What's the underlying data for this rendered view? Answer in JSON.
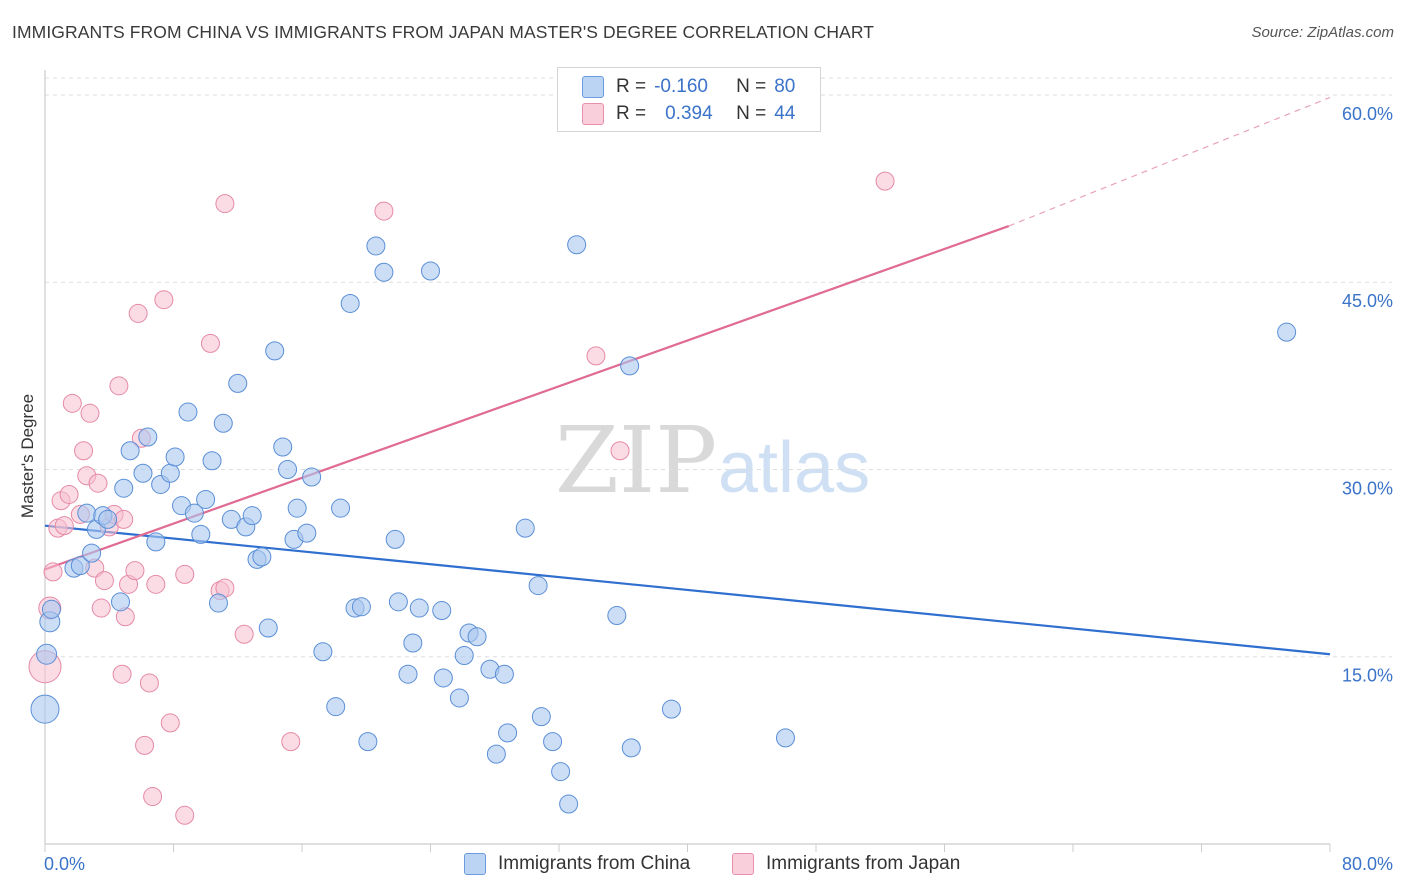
{
  "header": {
    "title": "IMMIGRANTS FROM CHINA VS IMMIGRANTS FROM JAPAN MASTER'S DEGREE CORRELATION CHART",
    "source": "Source: ZipAtlas.com"
  },
  "legend": {
    "rows": [
      {
        "r_label": "R =",
        "r_value": "-0.160",
        "n_label": "N =",
        "n_value": "80"
      },
      {
        "r_label": "R =",
        "r_value": "0.394",
        "n_label": "N =",
        "n_value": "44"
      }
    ]
  },
  "bottom_legend": {
    "china": "Immigrants from China",
    "japan": "Immigrants from Japan"
  },
  "watermark": {
    "zip": "ZIP",
    "atlas": "atlas"
  },
  "colors": {
    "china_fill": "#aac8f0",
    "china_stroke": "#5b8fd6",
    "china_line": "#2f6fcf",
    "japan_fill": "#f7c0d0",
    "japan_stroke": "#e58aa6",
    "japan_line": "#e06b93",
    "axis_text": "#3b73c9",
    "grid": "#dddddd"
  },
  "chart_data": {
    "type": "scatter",
    "ylabel": "Master's Degree",
    "xlim": [
      0,
      80
    ],
    "ylim": [
      0,
      62
    ],
    "x_tick_labels": [
      {
        "value": 0,
        "label": "0.0%"
      },
      {
        "value": 80,
        "label": "80.0%"
      }
    ],
    "y_tick_labels": [
      {
        "value": 15,
        "label": "15.0%"
      },
      {
        "value": 30,
        "label": "30.0%"
      },
      {
        "value": 45,
        "label": "45.0%"
      },
      {
        "value": 60,
        "label": "60.0%"
      }
    ],
    "grid": true,
    "series": [
      {
        "name": "Immigrants from China",
        "r": -0.16,
        "n": 80,
        "trend": {
          "x0": 0,
          "y0": 25.5,
          "x1": 80,
          "y1": 15.2
        },
        "points": [
          [
            0.0,
            10.8,
            14
          ],
          [
            0.1,
            15.2,
            10
          ],
          [
            0.3,
            17.8,
            10
          ],
          [
            0.4,
            18.8,
            9
          ],
          [
            1.8,
            22.1,
            9
          ],
          [
            2.2,
            22.3,
            9
          ],
          [
            2.6,
            26.5,
            9
          ],
          [
            2.9,
            23.3,
            9
          ],
          [
            3.2,
            25.2,
            9
          ],
          [
            3.6,
            26.3,
            9
          ],
          [
            3.9,
            26.0,
            9
          ],
          [
            4.7,
            19.4,
            9
          ],
          [
            4.9,
            28.5,
            9
          ],
          [
            5.3,
            31.5,
            9
          ],
          [
            6.1,
            29.7,
            9
          ],
          [
            6.4,
            32.6,
            9
          ],
          [
            6.9,
            24.2,
            9
          ],
          [
            7.2,
            28.8,
            9
          ],
          [
            7.8,
            29.7,
            9
          ],
          [
            8.1,
            31.0,
            9
          ],
          [
            8.5,
            27.1,
            9
          ],
          [
            8.9,
            34.6,
            9
          ],
          [
            9.3,
            26.5,
            9
          ],
          [
            9.7,
            24.8,
            9
          ],
          [
            10.0,
            27.6,
            9
          ],
          [
            10.4,
            30.7,
            9
          ],
          [
            10.8,
            19.3,
            9
          ],
          [
            11.1,
            33.7,
            9
          ],
          [
            11.6,
            26.0,
            9
          ],
          [
            12.0,
            36.9,
            9
          ],
          [
            12.5,
            25.4,
            9
          ],
          [
            12.9,
            26.3,
            9
          ],
          [
            13.2,
            22.8,
            9
          ],
          [
            13.5,
            23.0,
            9
          ],
          [
            13.9,
            17.3,
            9
          ],
          [
            14.3,
            39.5,
            9
          ],
          [
            14.8,
            31.8,
            9
          ],
          [
            15.1,
            30.0,
            9
          ],
          [
            15.5,
            24.4,
            9
          ],
          [
            15.7,
            26.9,
            9
          ],
          [
            16.3,
            24.9,
            9
          ],
          [
            16.6,
            29.4,
            9
          ],
          [
            17.3,
            15.4,
            9
          ],
          [
            18.1,
            11.0,
            9
          ],
          [
            18.4,
            26.9,
            9
          ],
          [
            19.0,
            43.3,
            9
          ],
          [
            19.3,
            18.9,
            9
          ],
          [
            19.7,
            19.0,
            9
          ],
          [
            20.1,
            8.2,
            9
          ],
          [
            20.6,
            47.9,
            9
          ],
          [
            21.1,
            45.8,
            9
          ],
          [
            21.8,
            24.4,
            9
          ],
          [
            22.0,
            19.4,
            9
          ],
          [
            22.6,
            13.6,
            9
          ],
          [
            22.9,
            16.1,
            9
          ],
          [
            23.3,
            18.9,
            9
          ],
          [
            24.0,
            45.9,
            9
          ],
          [
            24.8,
            13.3,
            9
          ],
          [
            25.8,
            11.7,
            9
          ],
          [
            26.1,
            15.1,
            9
          ],
          [
            26.4,
            16.9,
            9
          ],
          [
            26.9,
            16.6,
            9
          ],
          [
            27.7,
            14.0,
            9
          ],
          [
            28.1,
            7.2,
            9
          ],
          [
            28.6,
            13.6,
            9
          ],
          [
            28.8,
            8.9,
            9
          ],
          [
            29.9,
            25.3,
            9
          ],
          [
            30.7,
            20.7,
            9
          ],
          [
            30.9,
            10.2,
            9
          ],
          [
            31.6,
            8.2,
            9
          ],
          [
            32.1,
            5.8,
            9
          ],
          [
            32.6,
            3.2,
            9
          ],
          [
            33.1,
            48.0,
            9
          ],
          [
            35.6,
            18.3,
            9
          ],
          [
            36.4,
            38.3,
            9
          ],
          [
            36.5,
            7.7,
            9
          ],
          [
            39.0,
            10.8,
            9
          ],
          [
            46.1,
            8.5,
            9
          ],
          [
            77.3,
            41.0,
            9
          ],
          [
            24.7,
            18.7,
            9
          ]
        ]
      },
      {
        "name": "Immigrants from Japan",
        "r": 0.394,
        "n": 44,
        "trend": {
          "x0": 0,
          "y0": 22.0,
          "x1": 60,
          "y1": 49.5,
          "dash_x1": 80,
          "dash_y1": 59.8
        },
        "points": [
          [
            0.0,
            14.2,
            16
          ],
          [
            0.3,
            18.9,
            11
          ],
          [
            0.5,
            21.8,
            9
          ],
          [
            0.8,
            25.3,
            9
          ],
          [
            1.0,
            27.5,
            9
          ],
          [
            1.2,
            25.5,
            9
          ],
          [
            1.5,
            28.0,
            9
          ],
          [
            1.7,
            35.3,
            9
          ],
          [
            2.2,
            26.4,
            9
          ],
          [
            2.4,
            31.5,
            9
          ],
          [
            2.6,
            29.5,
            9
          ],
          [
            2.8,
            34.5,
            9
          ],
          [
            3.1,
            22.1,
            9
          ],
          [
            3.3,
            28.9,
            9
          ],
          [
            3.5,
            18.9,
            9
          ],
          [
            3.7,
            21.1,
            9
          ],
          [
            4.0,
            25.4,
            9
          ],
          [
            4.3,
            26.4,
            9
          ],
          [
            4.6,
            36.7,
            9
          ],
          [
            4.8,
            13.6,
            9
          ],
          [
            5.0,
            18.2,
            9
          ],
          [
            5.2,
            20.8,
            9
          ],
          [
            5.6,
            21.9,
            9
          ],
          [
            5.8,
            42.5,
            9
          ],
          [
            6.0,
            32.5,
            9
          ],
          [
            6.2,
            7.9,
            9
          ],
          [
            6.5,
            12.9,
            9
          ],
          [
            6.7,
            3.8,
            9
          ],
          [
            6.9,
            20.8,
            9
          ],
          [
            7.4,
            43.6,
            9
          ],
          [
            7.8,
            9.7,
            9
          ],
          [
            8.7,
            21.6,
            9
          ],
          [
            8.7,
            2.3,
            9
          ],
          [
            10.3,
            40.1,
            9
          ],
          [
            10.9,
            20.3,
            9
          ],
          [
            11.2,
            20.5,
            9
          ],
          [
            12.4,
            16.8,
            9
          ],
          [
            15.3,
            8.2,
            9
          ],
          [
            11.2,
            51.3,
            9
          ],
          [
            21.1,
            50.7,
            9
          ],
          [
            34.3,
            39.1,
            9
          ],
          [
            35.8,
            31.5,
            9
          ],
          [
            52.3,
            53.1,
            9
          ],
          [
            4.9,
            26.0,
            9
          ]
        ]
      }
    ]
  }
}
